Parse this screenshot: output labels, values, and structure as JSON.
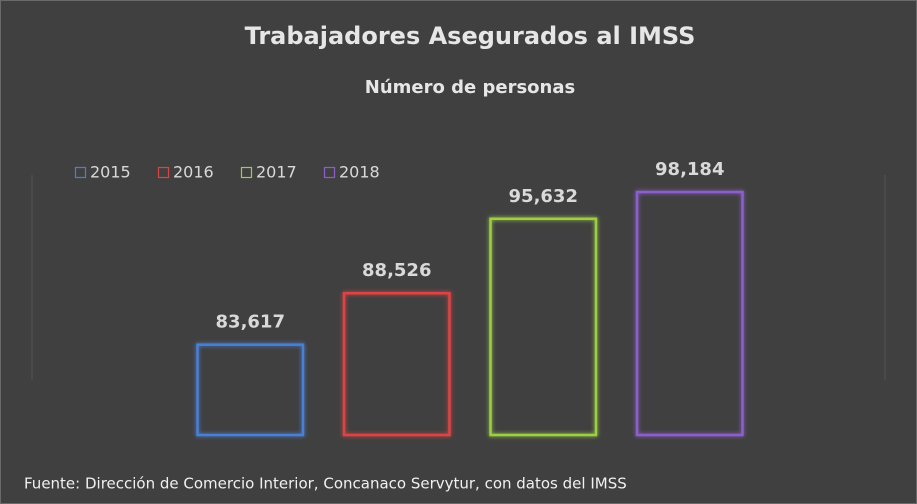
{
  "chart_data": {
    "type": "bar",
    "title": "Trabajadores Asegurados al IMSS",
    "subtitle": "Número de personas",
    "categories": [
      null
    ],
    "series": [
      {
        "name": "2015",
        "color": "#4a80d4",
        "values": [
          83617
        ],
        "value_labels": [
          "83,617"
        ]
      },
      {
        "name": "2016",
        "color": "#dc4444",
        "values": [
          88526
        ],
        "value_labels": [
          "88,526"
        ]
      },
      {
        "name": "2017",
        "color": "#9ccf42",
        "values": [
          95632
        ],
        "value_labels": [
          "95,632"
        ]
      },
      {
        "name": "2018",
        "color": "#8c5ecc",
        "values": [
          98184
        ],
        "value_labels": [
          "98,184"
        ]
      }
    ],
    "ylim": [
      75000,
      100000
    ],
    "legend": "top-left",
    "source": "Fuente: Dirección de Comercio Interior, Concanaco Servytur, con datos del IMSS"
  }
}
